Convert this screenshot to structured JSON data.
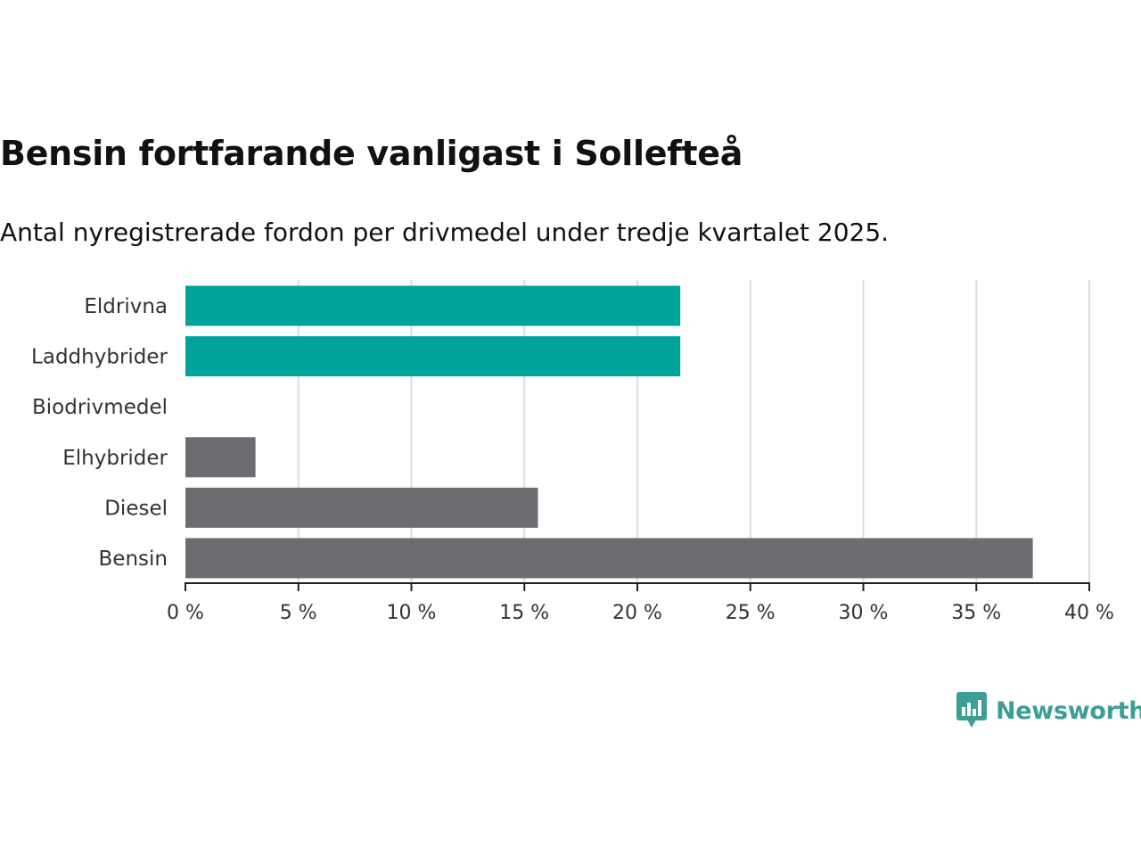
{
  "title": "Bensin fortfarande vanligast i Sollefteå",
  "subtitle": "Antal nyregistrerade fordon per drivmedel under tredje kvartalet 2025.",
  "brand": {
    "name": "Newsworthy",
    "color": "#3c9f95"
  },
  "chart_data": {
    "type": "bar",
    "orientation": "horizontal",
    "title": "Bensin fortfarande vanligast i Sollefteå",
    "subtitle": "Antal nyregistrerade fordon per drivmedel under tredje kvartalet 2025.",
    "xlabel": "",
    "ylabel": "",
    "xlim": [
      0,
      40
    ],
    "grid": true,
    "categories": [
      "Eldrivna",
      "Laddhybrider",
      "Biodrivmedel",
      "Elhybrider",
      "Diesel",
      "Bensin"
    ],
    "values": [
      21.9,
      21.9,
      0,
      3.1,
      15.6,
      37.5
    ],
    "colors": [
      "#00a39a",
      "#00a39a",
      "#6d6c71",
      "#6d6c71",
      "#6d6c71",
      "#6d6c71"
    ],
    "x_ticks": [
      0,
      5,
      10,
      15,
      20,
      25,
      30,
      35,
      40
    ],
    "x_tick_labels": [
      "0 %",
      "5 %",
      "10 %",
      "15 %",
      "20 %",
      "25 %",
      "30 %",
      "35 %",
      "40 %"
    ]
  }
}
